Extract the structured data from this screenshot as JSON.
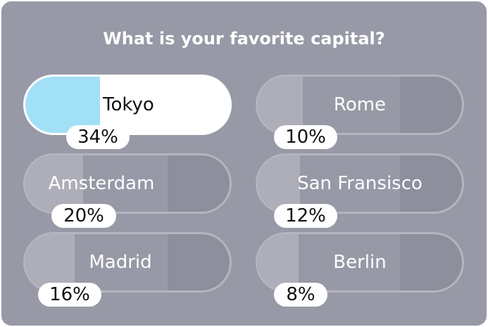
{
  "poll": {
    "question": "What is your favorite capital?",
    "options": [
      {
        "label": "Tokyo",
        "percent_text": "34%",
        "percent": 34,
        "selected": true
      },
      {
        "label": "Rome",
        "percent_text": "10%",
        "percent": 10,
        "selected": false
      },
      {
        "label": "Amsterdam",
        "percent_text": "20%",
        "percent": 20,
        "selected": false
      },
      {
        "label": "San Fransisco",
        "percent_text": "12%",
        "percent": 12,
        "selected": false
      },
      {
        "label": "Madrid",
        "percent_text": "16%",
        "percent": 16,
        "selected": false
      },
      {
        "label": "Berlin",
        "percent_text": "8%",
        "percent": 8,
        "selected": false
      }
    ]
  },
  "colors": {
    "background": "#9899a6",
    "selected_fill": "#a2e0f8",
    "selected_bg": "#ffffff",
    "unselected_fill": "#adaeb8",
    "unselected_bg": "#8e8f9c"
  }
}
